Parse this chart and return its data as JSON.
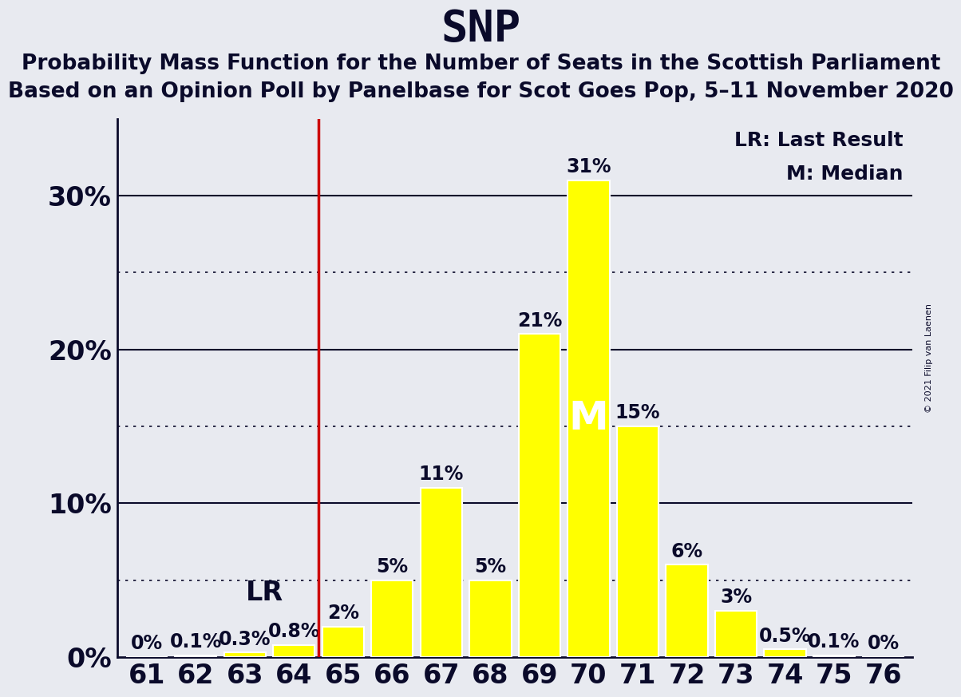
{
  "title": "SNP",
  "subtitle1": "Probability Mass Function for the Number of Seats in the Scottish Parliament",
  "subtitle2": "Based on an Opinion Poll by Panelbase for Scot Goes Pop, 5–11 November 2020",
  "copyright": "© 2021 Filip van Laenen",
  "seats": [
    61,
    62,
    63,
    64,
    65,
    66,
    67,
    68,
    69,
    70,
    71,
    72,
    73,
    74,
    75,
    76
  ],
  "probabilities": [
    0.0,
    0.1,
    0.3,
    0.8,
    2.0,
    5.0,
    11.0,
    5.0,
    21.0,
    31.0,
    15.0,
    6.0,
    3.0,
    0.5,
    0.1,
    0.0
  ],
  "bar_color": "#ffff00",
  "bar_edge_color": "#ffffff",
  "background_color": "#e8eaf0",
  "lr_seat": 64,
  "lr_line_color": "#cc0000",
  "median_seat": 70,
  "title_fontsize": 40,
  "subtitle_fontsize": 19,
  "tick_fontsize": 24,
  "bar_label_fontsize": 17,
  "median_label_fontsize": 36,
  "lr_label_fontsize": 24,
  "legend_fontsize": 18,
  "yticks": [
    0,
    10,
    20,
    30
  ],
  "dotted_gridlines": [
    5,
    15,
    25
  ],
  "solid_gridlines": [
    10,
    20,
    30
  ],
  "ylim": [
    0,
    35
  ],
  "legend_text1": "LR: Last Result",
  "legend_text2": "M: Median",
  "axis_color": "#0a0a2a",
  "text_color": "#0a0a2a"
}
